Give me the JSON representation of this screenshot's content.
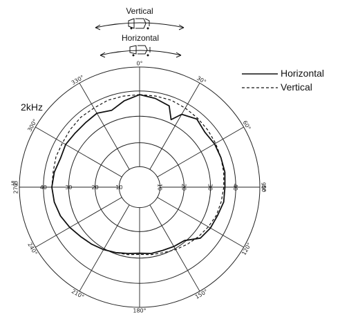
{
  "chart_data": {
    "type": "polar",
    "title": "2kHz",
    "radial_ticks": [
      "10",
      "20",
      "30",
      "40",
      "50"
    ],
    "angle_labels": [
      "0°",
      "30°",
      "60°",
      "90°",
      "120°",
      "150°",
      "180°",
      "210°",
      "240°",
      "270°",
      "300°",
      "330°"
    ],
    "legend": [
      {
        "name": "Horizontal",
        "style": "solid"
      },
      {
        "name": "Vertical",
        "style": "dashed"
      }
    ],
    "legend_position": "top-right",
    "orientation_labels": {
      "vertical": "Vertical",
      "horizontal": "Horizontal"
    },
    "series": [
      {
        "name": "Horizontal",
        "style": "solid",
        "angles": [
          0,
          10,
          20,
          25,
          30,
          40,
          50,
          60,
          70,
          80,
          90,
          100,
          110,
          120,
          130,
          140,
          150,
          160,
          170,
          180,
          190,
          200,
          210,
          220,
          230,
          240,
          250,
          260,
          270,
          280,
          290,
          300,
          310,
          320,
          330,
          340,
          350
        ],
        "radii": [
          0.77,
          0.75,
          0.72,
          0.62,
          0.7,
          0.74,
          0.71,
          0.72,
          0.72,
          0.72,
          0.71,
          0.71,
          0.69,
          0.68,
          0.66,
          0.58,
          0.57,
          0.56,
          0.56,
          0.55,
          0.56,
          0.58,
          0.6,
          0.62,
          0.64,
          0.67,
          0.7,
          0.72,
          0.73,
          0.72,
          0.7,
          0.71,
          0.7,
          0.7,
          0.71,
          0.68,
          0.73
        ]
      },
      {
        "name": "Vertical",
        "style": "dashed",
        "angles": [
          0,
          10,
          20,
          30,
          40,
          50,
          60,
          70,
          80,
          90,
          100,
          110,
          120,
          130,
          140,
          150,
          160,
          170,
          180,
          190,
          200,
          210,
          220,
          230,
          240,
          250,
          260,
          270,
          280,
          290,
          300,
          310,
          320,
          330,
          340,
          350
        ],
        "radii": [
          0.77,
          0.77,
          0.77,
          0.76,
          0.75,
          0.74,
          0.73,
          0.72,
          0.71,
          0.7,
          0.69,
          0.68,
          0.66,
          0.64,
          0.62,
          0.6,
          0.58,
          0.57,
          0.56,
          0.57,
          0.58,
          0.6,
          0.62,
          0.64,
          0.67,
          0.7,
          0.72,
          0.73,
          0.73,
          0.74,
          0.74,
          0.75,
          0.76,
          0.76,
          0.77,
          0.77
        ]
      }
    ]
  },
  "icons": {
    "vertical_icon": "speaker-vertical-icon",
    "horizontal_icon": "speaker-horizontal-icon"
  }
}
